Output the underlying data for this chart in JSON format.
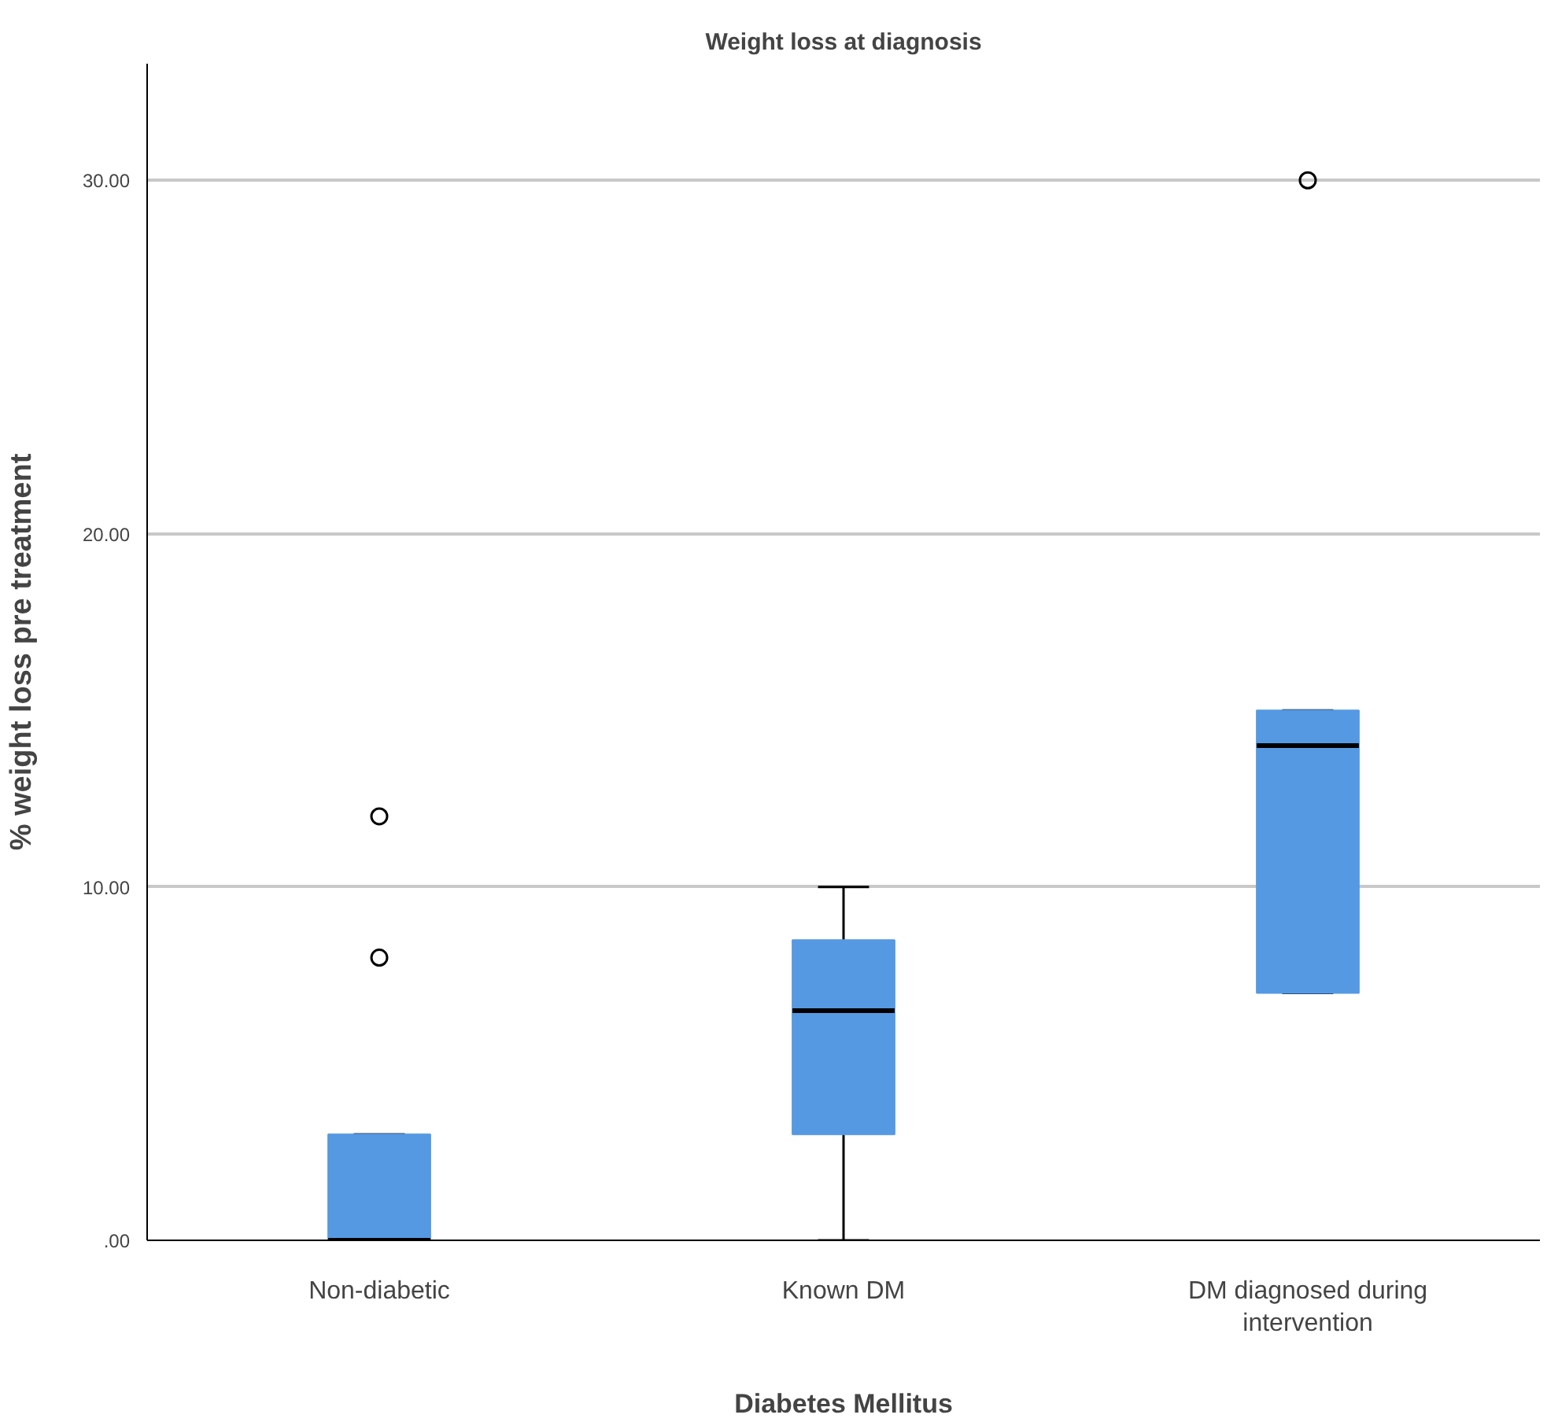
{
  "chart_data": {
    "type": "box",
    "title": "Weight loss at diagnosis",
    "xlabel": "Diabetes Mellitus",
    "ylabel": "% weight loss pre treatment",
    "categories": [
      "Non-diabetic",
      "Known DM",
      "DM diagnosed during intervention"
    ],
    "boxes": [
      {
        "low": 0,
        "q1": 0,
        "median": 0,
        "q3": 3,
        "high": 3,
        "outliers": [
          8,
          12
        ]
      },
      {
        "low": 0,
        "q1": 3,
        "median": 6.5,
        "q3": 8.5,
        "high": 10
      },
      {
        "low": 7,
        "q1": 7,
        "median": 14,
        "q3": 15,
        "high": 15,
        "outliers": [
          30
        ]
      }
    ],
    "color": "#5599e3",
    "ylim": [
      0,
      33.3
    ],
    "yticks": [
      {
        "value": 0,
        "label": ".00"
      },
      {
        "value": 10,
        "label": "10.00"
      },
      {
        "value": 20,
        "label": "20.00"
      },
      {
        "value": 30,
        "label": "30.00"
      }
    ],
    "grid": "y"
  }
}
